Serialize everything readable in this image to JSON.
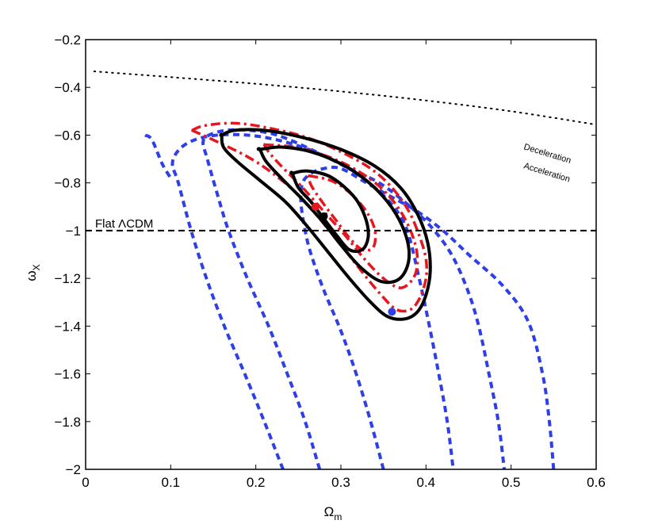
{
  "chart_data": {
    "type": "line",
    "xlabel": "Ω",
    "xlabel_sub": "m",
    "ylabel": "ω",
    "ylabel_sub": "X",
    "xlim": [
      0,
      0.6
    ],
    "ylim": [
      -2,
      -0.2
    ],
    "x_ticks": [
      0,
      0.1,
      0.2,
      0.3,
      0.4,
      0.5,
      0.6
    ],
    "x_tick_labels": [
      "0",
      "0.1",
      "0.2",
      "0.3",
      "0.4",
      "0.5",
      "0.6"
    ],
    "y_ticks": [
      -2,
      -1.8,
      -1.6,
      -1.4,
      -1.2,
      -1,
      -0.8,
      -0.6,
      -0.4,
      -0.2
    ],
    "y_tick_labels": [
      "−2",
      "−1.8",
      "−1.6",
      "−1.4",
      "−1.2",
      "−1",
      "−0.8",
      "−0.6",
      "−0.4",
      "−0.2"
    ],
    "grid": false,
    "annotations": {
      "flat_lcdm": "Flat ΛCDM",
      "deceleration": "Deceleration",
      "acceleration": "Acceleration"
    },
    "flat_lcdm_line": {
      "y": -1,
      "x": [
        0,
        0.6
      ],
      "color": "#000000",
      "style": "dashed"
    },
    "accel_boundary": {
      "color": "#000000",
      "style": "dotted",
      "points": [
        [
          0.01,
          -0.333
        ],
        [
          0.1,
          -0.357
        ],
        [
          0.2,
          -0.385
        ],
        [
          0.3,
          -0.417
        ],
        [
          0.4,
          -0.455
        ],
        [
          0.5,
          -0.5
        ],
        [
          0.6,
          -0.556
        ]
      ]
    },
    "series": [
      {
        "color": "#2f3fe6",
        "style": "dashed",
        "width": 4,
        "contours": [
          {
            "closed": false,
            "points": [
              [
                0.232,
                -2.0
              ],
              [
                0.21,
                -1.8
              ],
              [
                0.187,
                -1.6
              ],
              [
                0.163,
                -1.4
              ],
              [
                0.142,
                -1.2
              ],
              [
                0.124,
                -1.0
              ],
              [
                0.109,
                -0.8
              ],
              [
                0.102,
                -0.72
              ],
              [
                0.11,
                -0.66
              ],
              [
                0.128,
                -0.62
              ],
              [
                0.155,
                -0.6
              ],
              [
                0.19,
                -0.6
              ],
              [
                0.225,
                -0.62
              ],
              [
                0.262,
                -0.66
              ],
              [
                0.3,
                -0.72
              ],
              [
                0.318,
                -0.76
              ],
              [
                0.34,
                -0.82
              ],
              [
                0.362,
                -0.9
              ],
              [
                0.378,
                -1.0
              ],
              [
                0.392,
                -1.2
              ],
              [
                0.404,
                -1.4
              ],
              [
                0.415,
                -1.6
              ],
              [
                0.425,
                -1.8
              ],
              [
                0.432,
                -2.0
              ]
            ]
          },
          {
            "closed": false,
            "points": [
              [
                0.275,
                -2.0
              ],
              [
                0.258,
                -1.8
              ],
              [
                0.237,
                -1.6
              ],
              [
                0.215,
                -1.4
              ],
              [
                0.19,
                -1.2
              ],
              [
                0.168,
                -1.0
              ],
              [
                0.155,
                -0.85
              ],
              [
                0.143,
                -0.7
              ],
              [
                0.138,
                -0.63
              ],
              [
                0.145,
                -0.6
              ],
              [
                0.165,
                -0.58
              ],
              [
                0.193,
                -0.58
              ],
              [
                0.225,
                -0.6
              ],
              [
                0.265,
                -0.66
              ],
              [
                0.31,
                -0.74
              ],
              [
                0.345,
                -0.8
              ],
              [
                0.375,
                -0.88
              ],
              [
                0.405,
                -0.98
              ],
              [
                0.43,
                -1.1
              ],
              [
                0.449,
                -1.25
              ],
              [
                0.462,
                -1.4
              ],
              [
                0.474,
                -1.6
              ],
              [
                0.485,
                -1.8
              ],
              [
                0.492,
                -2.0
              ]
            ]
          },
          {
            "closed": false,
            "points": [
              [
                0.35,
                -2.0
              ],
              [
                0.335,
                -1.8
              ],
              [
                0.318,
                -1.6
              ],
              [
                0.3,
                -1.42
              ],
              [
                0.28,
                -1.25
              ],
              [
                0.265,
                -1.1
              ],
              [
                0.258,
                -1.0
              ],
              [
                0.253,
                -0.88
              ],
              [
                0.255,
                -0.8
              ],
              [
                0.265,
                -0.76
              ],
              [
                0.28,
                -0.74
              ],
              [
                0.3,
                -0.74
              ],
              [
                0.33,
                -0.8
              ],
              [
                0.36,
                -0.86
              ],
              [
                0.39,
                -0.92
              ],
              [
                0.42,
                -1.0
              ],
              [
                0.45,
                -1.1
              ],
              [
                0.49,
                -1.23
              ],
              [
                0.52,
                -1.38
              ],
              [
                0.537,
                -1.6
              ],
              [
                0.545,
                -1.8
              ],
              [
                0.55,
                -2.0
              ]
            ]
          },
          {
            "closed": false,
            "points": [
              [
                0.07,
                -0.6
              ],
              [
                0.078,
                -0.62
              ],
              [
                0.09,
                -0.72
              ],
              [
                0.1,
                -0.78
              ]
            ]
          }
        ]
      },
      {
        "color": "#e6161e",
        "style": "dashdot",
        "width": 3.5,
        "contours": [
          {
            "closed": true,
            "points": [
              [
                0.125,
                -0.58
              ],
              [
                0.14,
                -0.56
              ],
              [
                0.175,
                -0.55
              ],
              [
                0.215,
                -0.57
              ],
              [
                0.26,
                -0.61
              ],
              [
                0.3,
                -0.67
              ],
              [
                0.335,
                -0.74
              ],
              [
                0.36,
                -0.82
              ],
              [
                0.38,
                -0.92
              ],
              [
                0.393,
                -1.03
              ],
              [
                0.4,
                -1.12
              ],
              [
                0.4,
                -1.2
              ],
              [
                0.393,
                -1.28
              ],
              [
                0.382,
                -1.33
              ],
              [
                0.365,
                -1.33
              ],
              [
                0.345,
                -1.26
              ],
              [
                0.322,
                -1.16
              ],
              [
                0.3,
                -1.06
              ],
              [
                0.275,
                -0.95
              ],
              [
                0.25,
                -0.85
              ],
              [
                0.22,
                -0.76
              ],
              [
                0.19,
                -0.69
              ],
              [
                0.15,
                -0.62
              ],
              [
                0.125,
                -0.58
              ]
            ]
          },
          {
            "closed": true,
            "points": [
              [
                0.21,
                -0.64
              ],
              [
                0.245,
                -0.65
              ],
              [
                0.285,
                -0.69
              ],
              [
                0.32,
                -0.75
              ],
              [
                0.35,
                -0.83
              ],
              [
                0.372,
                -0.93
              ],
              [
                0.386,
                -1.04
              ],
              [
                0.39,
                -1.13
              ],
              [
                0.385,
                -1.2
              ],
              [
                0.37,
                -1.24
              ],
              [
                0.35,
                -1.2
              ],
              [
                0.328,
                -1.12
              ],
              [
                0.305,
                -1.02
              ],
              [
                0.28,
                -0.92
              ],
              [
                0.255,
                -0.82
              ],
              [
                0.23,
                -0.73
              ],
              [
                0.215,
                -0.67
              ],
              [
                0.21,
                -0.64
              ]
            ]
          },
          {
            "closed": true,
            "points": [
              [
                0.262,
                -0.77
              ],
              [
                0.288,
                -0.79
              ],
              [
                0.31,
                -0.84
              ],
              [
                0.33,
                -0.92
              ],
              [
                0.34,
                -1.0
              ],
              [
                0.338,
                -1.07
              ],
              [
                0.325,
                -1.08
              ],
              [
                0.31,
                -1.03
              ],
              [
                0.295,
                -0.96
              ],
              [
                0.278,
                -0.88
              ],
              [
                0.265,
                -0.81
              ],
              [
                0.262,
                -0.77
              ]
            ]
          }
        ]
      },
      {
        "color": "#000000",
        "style": "solid",
        "width": 4,
        "contours": [
          {
            "closed": true,
            "points": [
              [
                0.16,
                -0.6
              ],
              [
                0.175,
                -0.58
              ],
              [
                0.21,
                -0.58
              ],
              [
                0.255,
                -0.61
              ],
              [
                0.3,
                -0.66
              ],
              [
                0.34,
                -0.73
              ],
              [
                0.37,
                -0.82
              ],
              [
                0.39,
                -0.93
              ],
              [
                0.402,
                -1.05
              ],
              [
                0.405,
                -1.17
              ],
              [
                0.4,
                -1.27
              ],
              [
                0.39,
                -1.34
              ],
              [
                0.375,
                -1.37
              ],
              [
                0.355,
                -1.36
              ],
              [
                0.335,
                -1.3
              ],
              [
                0.31,
                -1.2
              ],
              [
                0.285,
                -1.09
              ],
              [
                0.26,
                -0.98
              ],
              [
                0.235,
                -0.88
              ],
              [
                0.205,
                -0.79
              ],
              [
                0.178,
                -0.71
              ],
              [
                0.162,
                -0.65
              ],
              [
                0.16,
                -0.6
              ]
            ]
          },
          {
            "closed": true,
            "points": [
              [
                0.205,
                -0.66
              ],
              [
                0.23,
                -0.65
              ],
              [
                0.265,
                -0.67
              ],
              [
                0.3,
                -0.72
              ],
              [
                0.33,
                -0.79
              ],
              [
                0.355,
                -0.88
              ],
              [
                0.372,
                -0.98
              ],
              [
                0.38,
                -1.08
              ],
              [
                0.377,
                -1.16
              ],
              [
                0.365,
                -1.21
              ],
              [
                0.345,
                -1.21
              ],
              [
                0.322,
                -1.15
              ],
              [
                0.3,
                -1.06
              ],
              [
                0.278,
                -0.96
              ],
              [
                0.255,
                -0.87
              ],
              [
                0.23,
                -0.78
              ],
              [
                0.212,
                -0.71
              ],
              [
                0.205,
                -0.66
              ]
            ]
          },
          {
            "closed": true,
            "points": [
              [
                0.243,
                -0.76
              ],
              [
                0.26,
                -0.75
              ],
              [
                0.285,
                -0.77
              ],
              [
                0.305,
                -0.82
              ],
              [
                0.32,
                -0.88
              ],
              [
                0.33,
                -0.96
              ],
              [
                0.332,
                -1.03
              ],
              [
                0.325,
                -1.08
              ],
              [
                0.31,
                -1.08
              ],
              [
                0.295,
                -1.02
              ],
              [
                0.28,
                -0.95
              ],
              [
                0.265,
                -0.88
              ],
              [
                0.25,
                -0.82
              ],
              [
                0.243,
                -0.76
              ]
            ]
          }
        ]
      }
    ],
    "best_fit_points": [
      {
        "x": 0.27,
        "y": -0.9,
        "color": "#e6161e"
      },
      {
        "x": 0.28,
        "y": -0.94,
        "color": "#000000"
      },
      {
        "x": 0.36,
        "y": -1.34,
        "color": "#2f3fe6"
      }
    ]
  }
}
